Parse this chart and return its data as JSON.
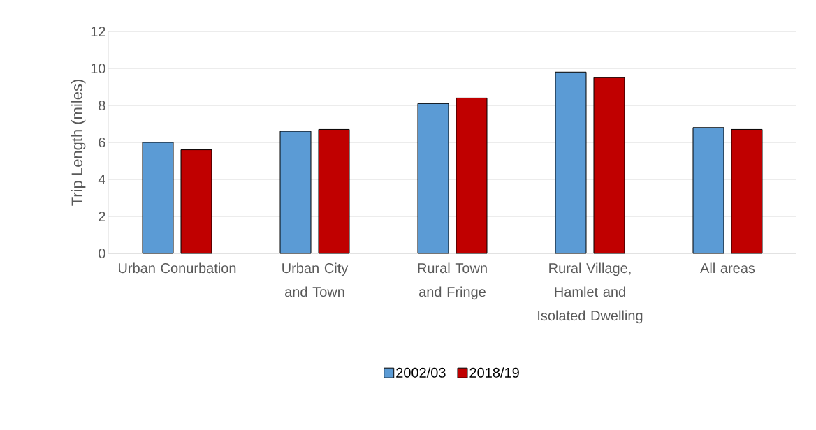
{
  "chart_data": {
    "type": "bar",
    "ylabel": "Trip Length (miles)",
    "categories": [
      "Urban Conurbation",
      "Urban City and Town",
      "Rural Town and Fringe",
      "Rural Village, Hamlet and Isolated Dwelling",
      "All areas"
    ],
    "series": [
      {
        "name": "2002/03",
        "color": "#5b9bd5",
        "values": [
          6.0,
          6.6,
          8.1,
          9.8,
          6.8
        ]
      },
      {
        "name": "2018/19",
        "color": "#c00000",
        "values": [
          5.6,
          6.7,
          8.4,
          9.5,
          6.7
        ]
      }
    ],
    "ylim": [
      0,
      12
    ],
    "yticks": [
      0,
      2,
      4,
      6,
      8,
      10,
      12
    ],
    "grid": "y",
    "legend": "bottom"
  }
}
